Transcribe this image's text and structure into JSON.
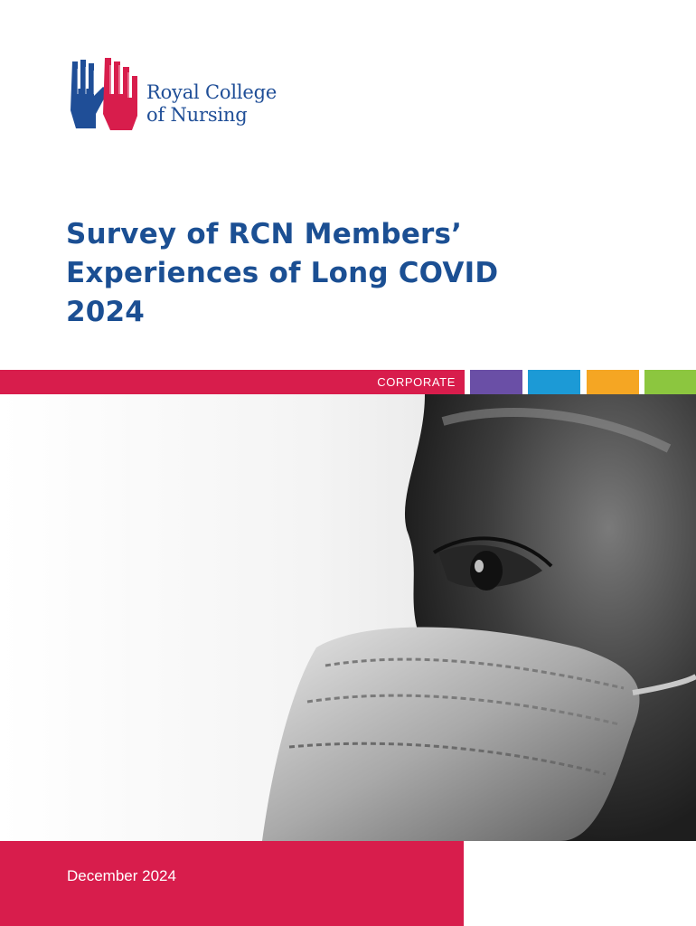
{
  "brand": {
    "name_line1": "Royal College",
    "name_line2": "of Nursing",
    "mark_icon": "two-hands-n-logo-icon",
    "primary_color": "#1b4f93",
    "accent_color": "#d81d4c"
  },
  "title": {
    "line1": "Survey of RCN Members’",
    "line2": "Experiences of Long COVID",
    "line3": "2024"
  },
  "band": {
    "label": "CORPORATE",
    "swatches": [
      "#6a4fa6",
      "#1c9ad6",
      "#f5a623",
      "#8cc63f"
    ]
  },
  "cover_image": {
    "icon": "masked-face-photo-icon"
  },
  "footer": {
    "date": "December 2024"
  }
}
